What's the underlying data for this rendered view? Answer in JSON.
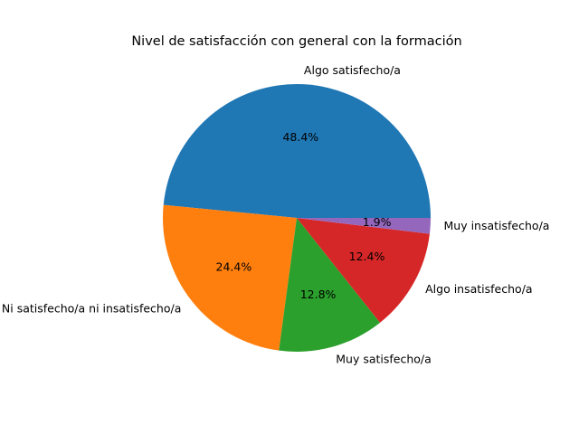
{
  "chart_data": {
    "type": "pie",
    "title": "Nivel de satisfacción con general con la formación",
    "labels": [
      "Algo satisfecho/a",
      "Ni satisfecho/a ni insatisfecho/a",
      "Muy satisfecho/a",
      "Algo insatisfecho/a",
      "Muy insatisfecho/a"
    ],
    "values": [
      48.4,
      24.4,
      12.8,
      12.4,
      1.9
    ],
    "percent_labels": [
      "48.4%",
      "24.4%",
      "12.8%",
      "12.4%",
      "1.9%"
    ],
    "colors": [
      "#1f77b4",
      "#ff7f0e",
      "#2ca02c",
      "#d62728",
      "#9467bd"
    ]
  }
}
